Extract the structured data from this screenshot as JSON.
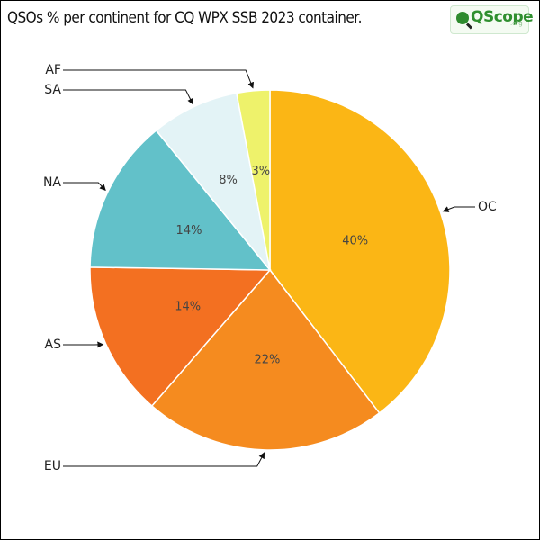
{
  "title": "QSOs % per continent for CQ WPX SSB 2023 container.",
  "logo": {
    "brand": "QScope",
    "tld": ".org"
  },
  "chart_data": {
    "type": "pie",
    "title": "QSOs % per continent for CQ WPX SSB 2023 container.",
    "start_angle_deg": 0,
    "direction": "clockwise",
    "slices": [
      {
        "label": "OC",
        "value": 40,
        "value_label": "40%",
        "color": "#fbb615"
      },
      {
        "label": "EU",
        "value": 22,
        "value_label": "22%",
        "color": "#f58b1f"
      },
      {
        "label": "AS",
        "value": 14,
        "value_label": "14%",
        "color": "#f37021"
      },
      {
        "label": "NA",
        "value": 14,
        "value_label": "14%",
        "color": "#62c1c9"
      },
      {
        "label": "SA",
        "value": 8,
        "value_label": "8%",
        "color": "#e3f3f6"
      },
      {
        "label": "AF",
        "value": 3,
        "value_label": "3%",
        "color": "#eef26b"
      }
    ]
  }
}
